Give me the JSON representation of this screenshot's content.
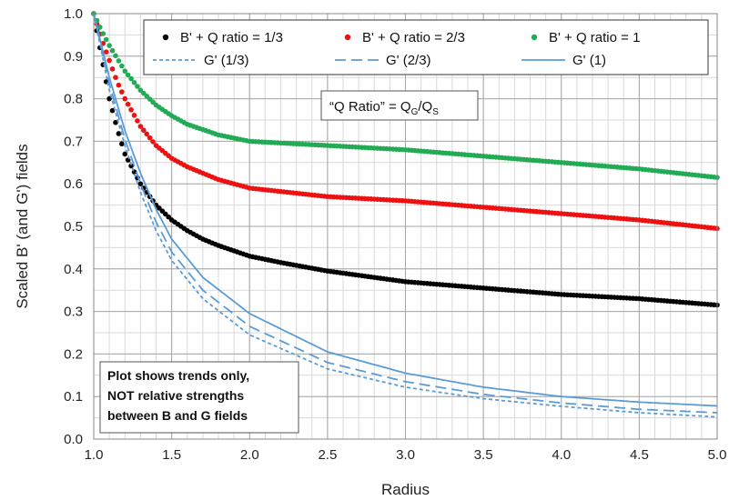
{
  "chart_data": {
    "type": "scatter",
    "xlabel": "Radius",
    "ylabel": "Scaled B' (and G') fields",
    "xlim": [
      1.0,
      5.0
    ],
    "ylim": [
      0.0,
      1.0
    ],
    "x_ticks": [
      1.0,
      1.5,
      2.0,
      2.5,
      3.0,
      3.5,
      4.0,
      4.5,
      5.0
    ],
    "x_tick_labels": [
      "1.0",
      "1.5",
      "2.0",
      "2.5",
      "3.0",
      "3.5",
      "4.0",
      "4.5",
      "5.0"
    ],
    "y_ticks": [
      0.0,
      0.1,
      0.2,
      0.3,
      0.4,
      0.5,
      0.6,
      0.7,
      0.8,
      0.9,
      1.0
    ],
    "y_tick_labels": [
      "0.0",
      "0.1",
      "0.2",
      "0.3",
      "0.4",
      "0.5",
      "0.6",
      "0.7",
      "0.8",
      "0.9",
      "1.0"
    ],
    "grid": true,
    "minor_grid_step_x": 0.1,
    "minor_grid_step_y": 0.05,
    "legend_position": "top",
    "series": [
      {
        "name": "B' + Q ratio = 1/3",
        "style": "dots",
        "color": "#000000",
        "x": [
          1.0,
          1.05,
          1.1,
          1.15,
          1.2,
          1.3,
          1.4,
          1.5,
          1.6,
          1.7,
          1.8,
          2.0,
          2.2,
          2.5,
          2.8,
          3.0,
          3.5,
          4.0,
          4.5,
          5.0
        ],
        "y": [
          1.0,
          0.9,
          0.8,
          0.73,
          0.67,
          0.6,
          0.55,
          0.515,
          0.49,
          0.47,
          0.455,
          0.43,
          0.415,
          0.395,
          0.38,
          0.37,
          0.355,
          0.34,
          0.33,
          0.315
        ]
      },
      {
        "name": "B' + Q ratio = 2/3",
        "style": "dots",
        "color": "#ee1111",
        "x": [
          1.0,
          1.05,
          1.1,
          1.15,
          1.2,
          1.3,
          1.4,
          1.5,
          1.6,
          1.8,
          2.0,
          2.5,
          3.0,
          3.5,
          4.0,
          4.5,
          5.0
        ],
        "y": [
          1.0,
          0.94,
          0.89,
          0.84,
          0.8,
          0.735,
          0.69,
          0.66,
          0.64,
          0.61,
          0.59,
          0.57,
          0.56,
          0.545,
          0.53,
          0.515,
          0.495
        ]
      },
      {
        "name": "B' + Q ratio = 1",
        "style": "dots",
        "color": "#22aa55",
        "x": [
          1.0,
          1.05,
          1.1,
          1.15,
          1.2,
          1.3,
          1.4,
          1.5,
          1.6,
          1.8,
          2.0,
          2.5,
          3.0,
          3.5,
          4.0,
          4.5,
          5.0
        ],
        "y": [
          1.0,
          0.96,
          0.925,
          0.895,
          0.865,
          0.82,
          0.785,
          0.76,
          0.74,
          0.715,
          0.7,
          0.69,
          0.68,
          0.665,
          0.65,
          0.635,
          0.615
        ]
      },
      {
        "name": "G' (1/3)",
        "style": "dotted",
        "color": "#5b9bd5",
        "x": [
          1.0,
          1.1,
          1.2,
          1.3,
          1.4,
          1.5,
          1.7,
          2.0,
          2.5,
          3.0,
          3.5,
          4.0,
          4.5,
          5.0
        ],
        "y": [
          1.0,
          0.82,
          0.69,
          0.58,
          0.49,
          0.42,
          0.33,
          0.245,
          0.165,
          0.122,
          0.095,
          0.077,
          0.062,
          0.052
        ]
      },
      {
        "name": "G' (2/3)",
        "style": "dashed",
        "color": "#5b9bd5",
        "x": [
          1.0,
          1.1,
          1.2,
          1.3,
          1.4,
          1.5,
          1.7,
          2.0,
          2.5,
          3.0,
          3.5,
          4.0,
          4.5,
          5.0
        ],
        "y": [
          1.0,
          0.835,
          0.705,
          0.6,
          0.51,
          0.44,
          0.35,
          0.265,
          0.18,
          0.135,
          0.105,
          0.085,
          0.07,
          0.062
        ]
      },
      {
        "name": "G' (1)",
        "style": "solid",
        "color": "#5b9bd5",
        "x": [
          1.0,
          1.1,
          1.2,
          1.3,
          1.4,
          1.5,
          1.7,
          2.0,
          2.5,
          3.0,
          3.5,
          4.0,
          4.5,
          5.0
        ],
        "y": [
          1.0,
          0.85,
          0.725,
          0.625,
          0.54,
          0.47,
          0.38,
          0.295,
          0.205,
          0.155,
          0.122,
          0.1,
          0.087,
          0.078
        ]
      }
    ],
    "annotations": {
      "q_ratio_prefix": "“Q Ratio” = Q",
      "q_ratio_sub1": "G",
      "q_ratio_slash": "/Q",
      "q_ratio_sub2": "S",
      "note_lines": [
        "Plot shows trends only,",
        "NOT relative strengths",
        "between B and G fields"
      ]
    }
  }
}
